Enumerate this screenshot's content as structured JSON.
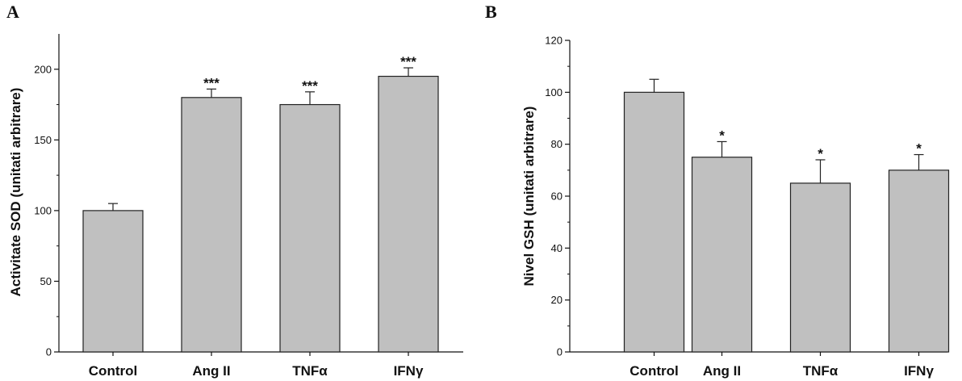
{
  "chart_data": [
    {
      "panel": "A",
      "type": "bar",
      "categories": [
        "Control",
        "Ang II",
        "TNFα",
        "IFNγ"
      ],
      "values": [
        100,
        180,
        175,
        195
      ],
      "errors": [
        5,
        6,
        9,
        6
      ],
      "significance": [
        "",
        "***",
        "***",
        "***"
      ],
      "ylabel": "Activitate SOD (unitati arbitrare)",
      "xlabel": "",
      "ylim": [
        0,
        225
      ],
      "yticks": [
        0,
        50,
        100,
        150,
        200
      ],
      "bar_color": "#c0c0c0",
      "grid": false
    },
    {
      "panel": "B",
      "type": "bar",
      "categories": [
        "Control",
        "Ang II",
        "TNFα",
        "IFNγ"
      ],
      "values": [
        100,
        75,
        65,
        70
      ],
      "errors": [
        5,
        6,
        9,
        6
      ],
      "significance": [
        "",
        "*",
        "*",
        "*"
      ],
      "ylabel": "Nivel GSH (unitati arbitrare)",
      "xlabel": "",
      "ylim": [
        0,
        120
      ],
      "yticks": [
        0,
        20,
        40,
        60,
        80,
        100,
        120
      ],
      "bar_color": "#c0c0c0",
      "grid": false
    }
  ]
}
